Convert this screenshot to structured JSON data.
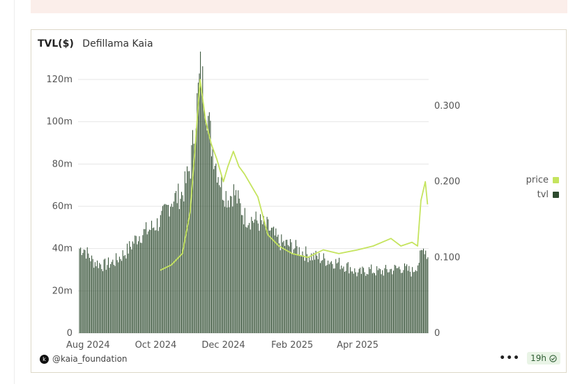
{
  "card": {
    "title": "TVL($)",
    "subtitle": "Defillama Kaia"
  },
  "legend": [
    {
      "label": "price",
      "color": "#c5e45e"
    },
    {
      "label": "tvl",
      "color": "#2d4a2e"
    }
  ],
  "footer": {
    "author": "@kaia_foundation",
    "age": "19h"
  },
  "chart_data": {
    "type": "bar+line",
    "x_ticks": [
      "Aug 2024",
      "Oct 2024",
      "Dec 2024",
      "Feb 2025",
      "Apr 2025"
    ],
    "y_left": {
      "ticks": [
        "0",
        "20m",
        "40m",
        "60m",
        "80m",
        "100m",
        "120m"
      ],
      "lim": [
        0,
        120000000
      ]
    },
    "y_right": {
      "ticks": [
        "0",
        "0.100",
        "0.200",
        "0.300"
      ],
      "lim": [
        0,
        0.3
      ]
    },
    "series": [
      {
        "name": "tvl",
        "type": "bar",
        "axis": "left",
        "color": "#2d4a2e",
        "x": [
          "2024-07-28",
          "2024-08-05",
          "2024-08-15",
          "2024-08-25",
          "2024-09-05",
          "2024-09-15",
          "2024-09-25",
          "2024-10-05",
          "2024-10-15",
          "2024-10-25",
          "2024-11-01",
          "2024-11-05",
          "2024-11-10",
          "2024-11-15",
          "2024-11-20",
          "2024-11-25",
          "2024-11-30",
          "2024-12-05",
          "2024-12-10",
          "2024-12-20",
          "2024-12-31",
          "2025-01-10",
          "2025-01-20",
          "2025-02-01",
          "2025-02-15",
          "2025-03-01",
          "2025-03-15",
          "2025-03-25",
          "2025-04-01",
          "2025-04-10",
          "2025-04-20",
          "2025-05-01",
          "2025-05-10",
          "2025-05-20",
          "2025-05-25",
          "2025-05-31",
          "2025-06-03"
        ],
        "values": [
          40000000,
          34000000,
          32000000,
          34000000,
          39000000,
          46000000,
          49000000,
          53000000,
          63000000,
          66000000,
          79000000,
          99000000,
          124000000,
          110000000,
          90000000,
          78000000,
          68000000,
          64000000,
          67000000,
          55000000,
          53000000,
          50000000,
          43000000,
          41000000,
          37000000,
          35000000,
          33000000,
          31000000,
          28000000,
          30000000,
          29000000,
          30000000,
          31000000,
          29000000,
          33000000,
          41000000,
          36000000
        ]
      },
      {
        "name": "price",
        "type": "line",
        "axis": "right",
        "color": "#c5e45e",
        "x": [
          "2024-10-05",
          "2024-10-15",
          "2024-10-25",
          "2024-11-01",
          "2024-11-05",
          "2024-11-10",
          "2024-11-15",
          "2024-11-20",
          "2024-11-25",
          "2024-12-01",
          "2024-12-05",
          "2024-12-10",
          "2024-12-15",
          "2024-12-20",
          "2025-01-01",
          "2025-01-10",
          "2025-01-20",
          "2025-02-01",
          "2025-02-15",
          "2025-03-01",
          "2025-03-15",
          "2025-04-01",
          "2025-04-15",
          "2025-05-01",
          "2025-05-10",
          "2025-05-20",
          "2025-05-25",
          "2025-05-28",
          "2025-06-01",
          "2025-06-03"
        ],
        "values": [
          0.083,
          0.09,
          0.105,
          0.16,
          0.235,
          0.335,
          0.28,
          0.25,
          0.23,
          0.2,
          0.22,
          0.24,
          0.22,
          0.21,
          0.18,
          0.13,
          0.115,
          0.105,
          0.1,
          0.11,
          0.105,
          0.11,
          0.115,
          0.125,
          0.115,
          0.12,
          0.115,
          0.175,
          0.2,
          0.17
        ]
      }
    ]
  }
}
